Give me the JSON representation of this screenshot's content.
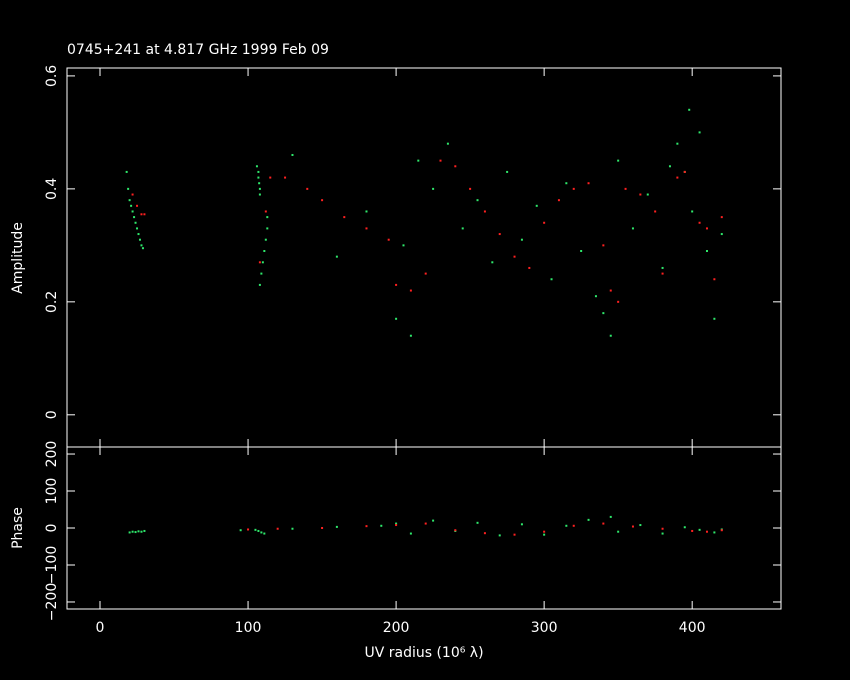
{
  "chart_data": [
    {
      "type": "scatter",
      "title": "0745+241 at 4.817 GHz 1999 Feb 09",
      "y_label": "Amplitude",
      "xlim": [
        -22.3,
        460
      ],
      "ylim": [
        -0.057,
        0.614
      ],
      "yticks": [
        0,
        0.2,
        0.4,
        0.6
      ],
      "series": [
        {
          "color": "#2ee86b",
          "x": [
            18,
            19,
            20,
            21,
            22,
            23,
            24,
            25,
            26,
            27,
            28,
            29,
            106,
            107,
            107,
            107.5,
            108,
            108,
            108,
            109,
            110,
            111,
            112,
            113,
            113,
            130,
            160,
            180,
            200,
            205,
            210,
            215,
            225,
            235,
            245,
            255,
            265,
            275,
            285,
            295,
            305,
            315,
            325,
            335,
            340,
            345,
            350,
            360,
            370,
            380,
            390,
            395,
            400,
            405,
            410,
            415,
            420,
            398,
            385
          ],
          "values": [
            0.43,
            0.4,
            0.38,
            0.37,
            0.36,
            0.35,
            0.34,
            0.33,
            0.32,
            0.31,
            0.3,
            0.295,
            0.44,
            0.43,
            0.42,
            0.41,
            0.4,
            0.39,
            0.23,
            0.25,
            0.27,
            0.29,
            0.31,
            0.33,
            0.35,
            0.46,
            0.28,
            0.36,
            0.17,
            0.3,
            0.14,
            0.45,
            0.4,
            0.48,
            0.33,
            0.38,
            0.27,
            0.43,
            0.31,
            0.37,
            0.24,
            0.41,
            0.29,
            0.21,
            0.18,
            0.14,
            0.45,
            0.33,
            0.39,
            0.26,
            0.48,
            0.43,
            0.36,
            0.5,
            0.29,
            0.17,
            0.32,
            0.54,
            0.44
          ]
        },
        {
          "color": "#ff2020",
          "x": [
            22,
            25,
            28,
            30,
            108,
            112,
            115,
            125,
            140,
            150,
            165,
            180,
            195,
            200,
            210,
            220,
            230,
            240,
            250,
            260,
            270,
            280,
            290,
            300,
            310,
            320,
            330,
            340,
            345,
            350,
            355,
            365,
            375,
            380,
            390,
            395,
            405,
            410,
            415,
            420
          ],
          "values": [
            0.39,
            0.37,
            0.355,
            0.355,
            0.27,
            0.36,
            0.42,
            0.42,
            0.4,
            0.38,
            0.35,
            0.33,
            0.31,
            0.23,
            0.22,
            0.25,
            0.45,
            0.44,
            0.4,
            0.36,
            0.32,
            0.28,
            0.26,
            0.34,
            0.38,
            0.4,
            0.41,
            0.3,
            0.22,
            0.2,
            0.4,
            0.39,
            0.36,
            0.25,
            0.42,
            0.43,
            0.34,
            0.33,
            0.24,
            0.35
          ]
        }
      ]
    },
    {
      "type": "scatter",
      "y_label": "Phase",
      "x_label": "UV radius  (10⁶ λ)",
      "xlim": [
        -22.3,
        460
      ],
      "ylim": [
        -219,
        219
      ],
      "xticks": [
        0,
        100,
        200,
        300,
        400
      ],
      "yticks": [
        {
          "value": -200,
          "label": "−200"
        },
        {
          "value": -100,
          "label": "−100"
        },
        0,
        100,
        200
      ],
      "series": [
        {
          "color": "#2ee86b",
          "x": [
            20,
            22,
            24,
            26,
            28,
            30,
            105,
            107,
            109,
            111,
            95,
            130,
            160,
            190,
            200,
            210,
            225,
            240,
            255,
            270,
            285,
            300,
            315,
            330,
            345,
            350,
            365,
            380,
            395,
            405,
            415,
            420
          ],
          "values": [
            -12,
            -10,
            -11,
            -9,
            -10,
            -8,
            -5,
            -8,
            -12,
            -15,
            -6,
            -2,
            3,
            6,
            12,
            -15,
            20,
            -8,
            14,
            -20,
            10,
            -18,
            6,
            22,
            30,
            -10,
            8,
            -15,
            2,
            -5,
            -12,
            -4
          ]
        },
        {
          "color": "#ff2020",
          "x": [
            100,
            120,
            150,
            180,
            200,
            220,
            240,
            260,
            280,
            300,
            320,
            340,
            360,
            380,
            400,
            410,
            420
          ],
          "values": [
            -4,
            -2,
            0,
            5,
            8,
            12,
            -6,
            -14,
            -18,
            -10,
            6,
            12,
            4,
            -2,
            -8,
            -10,
            -6
          ]
        }
      ]
    }
  ]
}
